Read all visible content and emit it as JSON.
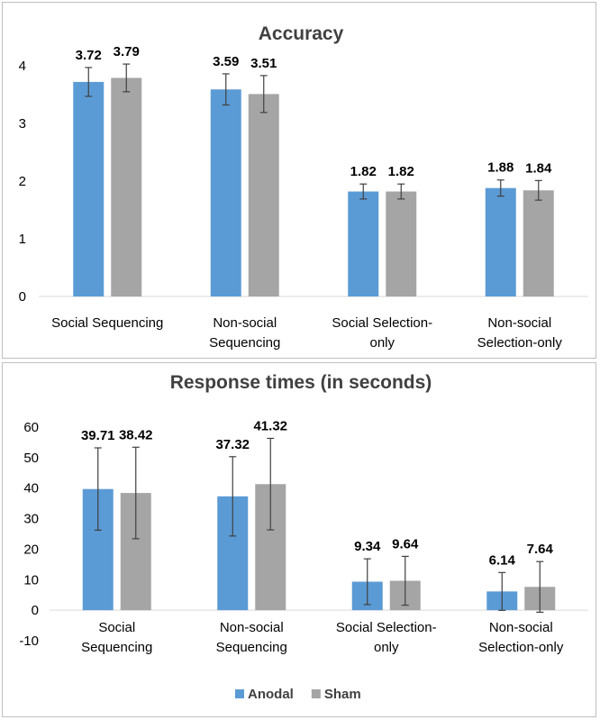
{
  "chart_data": [
    {
      "type": "bar",
      "title": "Accuracy",
      "categories": [
        [
          "Social Sequencing"
        ],
        [
          "Non-social",
          "Sequencing"
        ],
        [
          "Social Selection-",
          "only"
        ],
        [
          "Non-social",
          "Selection-only"
        ]
      ],
      "series": [
        {
          "name": "Anodal",
          "color": "#5b9bd5",
          "values": [
            3.72,
            3.59,
            1.82,
            1.88
          ],
          "errors": [
            0.25,
            0.27,
            0.13,
            0.14
          ]
        },
        {
          "name": "Sham",
          "color": "#a5a5a5",
          "values": [
            3.79,
            3.51,
            1.82,
            1.84
          ],
          "errors": [
            0.24,
            0.32,
            0.13,
            0.17
          ]
        }
      ],
      "data_labels": [
        [
          "3.72",
          "3.59",
          "1.82",
          "1.88"
        ],
        [
          "3.79",
          "3.51",
          "1.82",
          "1.84"
        ]
      ],
      "ylim": [
        0,
        4
      ],
      "yticks": [
        0,
        1,
        2,
        3,
        4
      ],
      "grid": false
    },
    {
      "type": "bar",
      "title": "Response times (in seconds)",
      "categories": [
        [
          "Social",
          "Sequencing"
        ],
        [
          "Non-social",
          "Sequencing"
        ],
        [
          "Social Selection-",
          "only"
        ],
        [
          "Non-social",
          "Selection-only"
        ]
      ],
      "series": [
        {
          "name": "Anodal",
          "color": "#5b9bd5",
          "values": [
            39.71,
            37.32,
            9.34,
            6.14
          ],
          "errors": [
            13.5,
            13.0,
            7.5,
            6.2
          ]
        },
        {
          "name": "Sham",
          "color": "#a5a5a5",
          "values": [
            38.42,
            41.32,
            9.64,
            7.64
          ],
          "errors": [
            15.0,
            15.0,
            8.0,
            8.3
          ]
        }
      ],
      "data_labels": [
        [
          "39.71",
          "37.32",
          "9.34",
          "6.14"
        ],
        [
          "38.42",
          "41.32",
          "9.64",
          "7.64"
        ]
      ],
      "ylim": [
        -10,
        60
      ],
      "yticks": [
        -10,
        0,
        10,
        20,
        30,
        40,
        50,
        60
      ],
      "grid": false,
      "legend": {
        "position": "bottom",
        "entries": [
          "Anodal",
          "Sham"
        ]
      }
    }
  ]
}
